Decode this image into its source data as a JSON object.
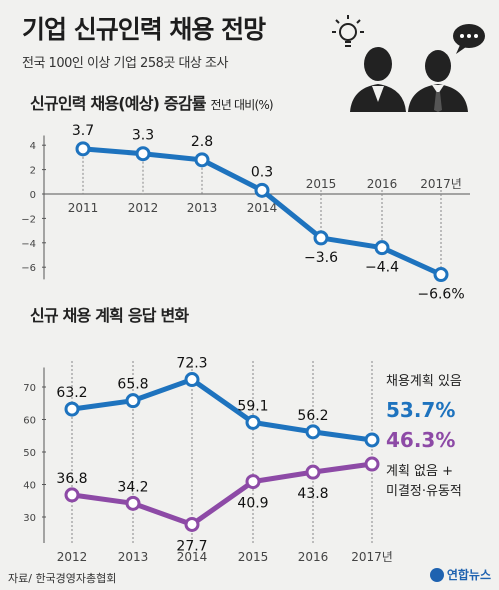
{
  "header": {
    "title": "기업 신규인력 채용 전망",
    "subtitle": "전국 100인 이상 기업 258곳 대상 조사",
    "icon": "lightbulb-people-icon"
  },
  "chart_data": [
    {
      "type": "line",
      "title": "신규인력 채용(예상) 증감률",
      "unit": "전년 대비(%)",
      "categories": [
        "2011",
        "2012",
        "2013",
        "2014",
        "2015",
        "2016",
        "2017년"
      ],
      "series": [
        {
          "values": [
            3.7,
            3.3,
            2.8,
            0.3,
            -3.6,
            -4.4,
            -6.6
          ],
          "color": "#1e73be"
        }
      ],
      "value_labels": [
        "3.7",
        "3.3",
        "2.8",
        "0.3",
        "−3.6",
        "−4.4",
        "−6.6%"
      ],
      "yticks": [
        "4",
        "2",
        "0",
        "−2",
        "−4",
        "−6"
      ],
      "ylim": [
        -7,
        4.8
      ],
      "grid": false
    },
    {
      "type": "line",
      "title": "신규 채용 계획 응답 변화",
      "categories": [
        "2012",
        "2013",
        "2014",
        "2015",
        "2016",
        "2017년"
      ],
      "series": [
        {
          "name": "채용계획 있음",
          "values": [
            63.2,
            65.8,
            72.3,
            59.1,
            56.2,
            53.7
          ],
          "color": "#1e73be",
          "value_labels": [
            "63.2",
            "65.8",
            "72.3",
            "59.1",
            "56.2"
          ],
          "final_label": "53.7%"
        },
        {
          "name": "계획 없음 + 미결정·유동적",
          "name_lines": [
            "계획 없음 +",
            "미결정·유동적"
          ],
          "values": [
            36.8,
            34.2,
            27.7,
            40.9,
            43.8,
            46.3
          ],
          "color": "#8d4aa6",
          "value_labels": [
            "36.8",
            "34.2",
            "27.7",
            "40.9",
            "43.8"
          ],
          "final_label": "46.3%"
        }
      ],
      "yticks": [
        "70",
        "60",
        "50",
        "40",
        "30"
      ],
      "ylim": [
        22,
        76
      ],
      "grid": false
    }
  ],
  "footer": {
    "source": "자료/ 한국경영자총협회",
    "logo": "연합뉴스"
  }
}
